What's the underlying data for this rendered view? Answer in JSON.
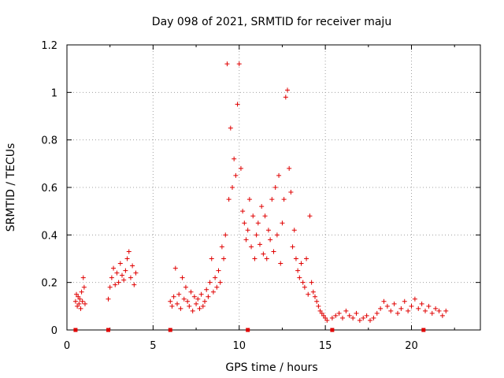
{
  "chart_data": {
    "type": "scatter",
    "title": "Day 098 of 2021, SRMTID for receiver maju",
    "xlabel": "GPS time / hours",
    "ylabel": "SRMTID / TECUs",
    "xlim": [
      0,
      24
    ],
    "ylim": [
      0,
      1.2
    ],
    "x_ticks": [
      0,
      5,
      10,
      15,
      20
    ],
    "x_tick_labels": [
      "0",
      "5",
      "10",
      "15",
      "20"
    ],
    "y_ticks": [
      0,
      0.2,
      0.4,
      0.6,
      0.8,
      1.0,
      1.2
    ],
    "y_tick_labels": [
      "0",
      "0.2",
      "0.4",
      "0.6",
      "0.8",
      "1",
      "1.2"
    ],
    "grid": true,
    "marker": "plus",
    "color": "#e00000",
    "baseline_markers_x": [
      0.5,
      2.4,
      6.0,
      10.5,
      15.4,
      20.7
    ],
    "series": [
      {
        "name": "SRMTID",
        "x": [
          0.5,
          0.55,
          0.6,
          0.65,
          0.7,
          0.75,
          0.8,
          0.85,
          0.9,
          0.95,
          1.0,
          1.05,
          2.4,
          2.5,
          2.6,
          2.7,
          2.8,
          2.9,
          3.0,
          3.1,
          3.2,
          3.3,
          3.4,
          3.5,
          3.6,
          3.7,
          3.8,
          3.9,
          4.0,
          6.0,
          6.1,
          6.2,
          6.3,
          6.4,
          6.5,
          6.6,
          6.7,
          6.8,
          6.9,
          7.0,
          7.1,
          7.2,
          7.3,
          7.4,
          7.5,
          7.6,
          7.7,
          7.8,
          7.9,
          8.0,
          8.1,
          8.2,
          8.3,
          8.4,
          8.5,
          8.6,
          8.7,
          8.8,
          8.9,
          9.0,
          9.1,
          9.2,
          9.3,
          9.4,
          9.5,
          9.6,
          9.7,
          9.8,
          9.9,
          10.0,
          10.1,
          10.2,
          10.3,
          10.4,
          10.5,
          10.6,
          10.7,
          10.8,
          10.9,
          11.0,
          11.1,
          11.2,
          11.3,
          11.4,
          11.5,
          11.6,
          11.7,
          11.8,
          11.9,
          12.0,
          12.1,
          12.2,
          12.3,
          12.4,
          12.5,
          12.6,
          12.7,
          12.8,
          12.9,
          13.0,
          13.1,
          13.2,
          13.3,
          13.4,
          13.5,
          13.6,
          13.7,
          13.8,
          13.9,
          14.0,
          14.1,
          14.2,
          14.3,
          14.4,
          14.5,
          14.6,
          14.7,
          14.8,
          14.9,
          15.0,
          15.1,
          15.4,
          15.6,
          15.8,
          16.0,
          16.2,
          16.4,
          16.6,
          16.8,
          17.0,
          17.2,
          17.4,
          17.6,
          17.8,
          18.0,
          18.2,
          18.4,
          18.6,
          18.8,
          19.0,
          19.2,
          19.4,
          19.6,
          19.8,
          20.0,
          20.2,
          20.4,
          20.6,
          20.8,
          21.0,
          21.2,
          21.4,
          21.6,
          21.8,
          22.0
        ],
        "y": [
          0.12,
          0.15,
          0.1,
          0.14,
          0.11,
          0.13,
          0.09,
          0.16,
          0.12,
          0.22,
          0.18,
          0.11,
          0.13,
          0.18,
          0.22,
          0.26,
          0.19,
          0.24,
          0.2,
          0.28,
          0.23,
          0.21,
          0.25,
          0.3,
          0.33,
          0.22,
          0.27,
          0.19,
          0.24,
          0.12,
          0.1,
          0.14,
          0.26,
          0.11,
          0.15,
          0.09,
          0.22,
          0.13,
          0.18,
          0.12,
          0.1,
          0.16,
          0.08,
          0.14,
          0.11,
          0.13,
          0.09,
          0.15,
          0.1,
          0.12,
          0.17,
          0.14,
          0.2,
          0.3,
          0.16,
          0.22,
          0.18,
          0.25,
          0.2,
          0.35,
          0.3,
          0.4,
          1.12,
          0.55,
          0.85,
          0.6,
          0.72,
          0.65,
          0.95,
          1.12,
          0.68,
          0.5,
          0.45,
          0.38,
          0.42,
          0.55,
          0.35,
          0.48,
          0.3,
          0.4,
          0.45,
          0.36,
          0.52,
          0.32,
          0.48,
          0.3,
          0.42,
          0.38,
          0.55,
          0.33,
          0.6,
          0.4,
          0.65,
          0.28,
          0.45,
          0.55,
          0.98,
          1.01,
          0.68,
          0.58,
          0.35,
          0.42,
          0.3,
          0.25,
          0.22,
          0.28,
          0.2,
          0.18,
          0.3,
          0.15,
          0.48,
          0.2,
          0.16,
          0.14,
          0.12,
          0.1,
          0.08,
          0.07,
          0.06,
          0.05,
          0.04,
          0.05,
          0.06,
          0.07,
          0.05,
          0.08,
          0.06,
          0.05,
          0.07,
          0.04,
          0.05,
          0.06,
          0.04,
          0.05,
          0.07,
          0.09,
          0.12,
          0.1,
          0.08,
          0.11,
          0.07,
          0.09,
          0.12,
          0.08,
          0.1,
          0.13,
          0.09,
          0.11,
          0.08,
          0.1,
          0.07,
          0.09,
          0.08,
          0.06,
          0.08
        ]
      }
    ]
  }
}
